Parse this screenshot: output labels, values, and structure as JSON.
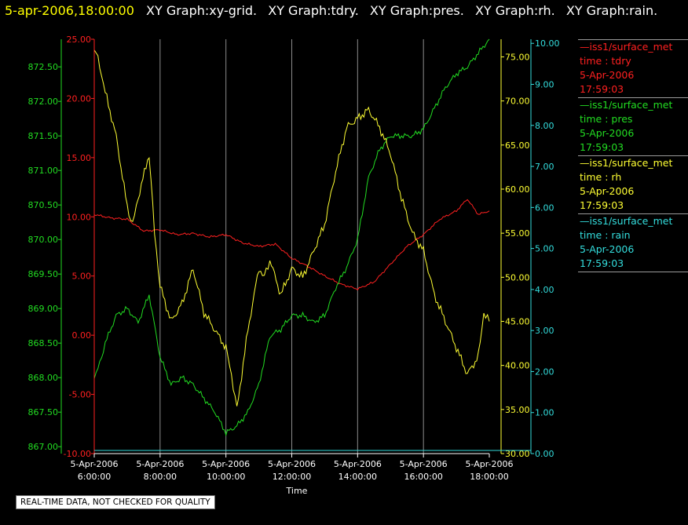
{
  "header": {
    "timestamp": "5-apr-2006,18:00:00",
    "graphs": [
      "XY Graph:xy-grid.",
      "XY Graph:tdry.",
      "XY Graph:pres.",
      "XY Graph:rh.",
      "XY Graph:rain."
    ]
  },
  "disclaimer": "REAL-TIME DATA, NOT CHECKED FOR QUALITY",
  "legend": [
    {
      "source": "—iss1/surface_met",
      "variable": "time : tdry",
      "date": "5-Apr-2006",
      "time": "17:59:03",
      "color": "#ff2020"
    },
    {
      "source": "—iss1/surface_met",
      "variable": "time : pres",
      "date": "5-Apr-2006",
      "time": "17:59:03",
      "color": "#22dd22"
    },
    {
      "source": "—iss1/surface_met",
      "variable": "time : rh",
      "date": "5-Apr-2006",
      "time": "17:59:03",
      "color": "#ffff33"
    },
    {
      "source": "—iss1/surface_met",
      "variable": "time : rain",
      "date": "5-Apr-2006",
      "time": "17:59:03",
      "color": "#33dddd"
    }
  ],
  "chart_data": {
    "type": "line",
    "xlabel": "Time",
    "xlim": [
      "06:00",
      "18:00"
    ],
    "x_ticks": [
      {
        "date": "5-Apr-2006",
        "time": "6:00:00"
      },
      {
        "date": "5-Apr-2006",
        "time": "8:00:00"
      },
      {
        "date": "5-Apr-2006",
        "time": "10:00:00"
      },
      {
        "date": "5-Apr-2006",
        "time": "12:00:00"
      },
      {
        "date": "5-Apr-2006",
        "time": "14:00:00"
      },
      {
        "date": "5-Apr-2006",
        "time": "16:00:00"
      },
      {
        "date": "5-Apr-2006",
        "time": "18:00:00"
      }
    ],
    "grid": "vertical",
    "axes": {
      "tdry": {
        "side": "left-inner",
        "color": "#ff2020",
        "ylim": [
          -10,
          25
        ],
        "ticks": [
          "25.00",
          "20.00",
          "15.00",
          "10.00",
          "5.00",
          "0.00",
          "-5.00",
          "-10.00"
        ]
      },
      "pres": {
        "side": "left-outer",
        "color": "#22dd22",
        "ylim": [
          866.9,
          872.9
        ],
        "ticks": [
          "872.50",
          "872.00",
          "871.50",
          "871.00",
          "870.50",
          "870.00",
          "869.50",
          "869.00",
          "868.50",
          "868.00",
          "867.50",
          "867.00"
        ]
      },
      "rh": {
        "side": "right-inner",
        "color": "#ffff33",
        "ylim": [
          30,
          77
        ],
        "ticks": [
          "75.00",
          "70.00",
          "65.00",
          "60.00",
          "55.00",
          "50.00",
          "45.00",
          "40.00",
          "35.00",
          "30.00"
        ]
      },
      "rain": {
        "side": "right-outer",
        "color": "#33dddd",
        "ylim": [
          0,
          10.1
        ],
        "ticks": [
          "10.00",
          "9.00",
          "8.00",
          "7.00",
          "6.00",
          "5.00",
          "4.00",
          "3.00",
          "2.00",
          "1.00",
          "0.00"
        ]
      }
    },
    "series": [
      {
        "axis": "tdry",
        "color": "#ff2020",
        "x": [
          "06:00",
          "06:30",
          "07:00",
          "07:30",
          "08:00",
          "08:30",
          "09:00",
          "09:30",
          "10:00",
          "10:30",
          "11:00",
          "11:30",
          "12:00",
          "12:30",
          "13:00",
          "13:30",
          "14:00",
          "14:30",
          "15:00",
          "15:30",
          "16:00",
          "16:30",
          "17:00",
          "17:20",
          "17:40",
          "18:00"
        ],
        "values": [
          10.2,
          9.9,
          9.8,
          8.8,
          8.9,
          8.5,
          8.6,
          8.3,
          8.5,
          7.8,
          7.5,
          7.7,
          6.5,
          5.8,
          5.0,
          4.3,
          3.9,
          4.5,
          6.0,
          7.5,
          8.5,
          9.8,
          10.5,
          11.5,
          10.2,
          10.5
        ]
      },
      {
        "axis": "pres",
        "color": "#22dd22",
        "x": [
          "06:00",
          "06:10",
          "06:20",
          "06:40",
          "07:00",
          "07:20",
          "07:40",
          "08:00",
          "08:20",
          "08:40",
          "09:00",
          "09:20",
          "09:40",
          "10:00",
          "10:20",
          "10:40",
          "11:00",
          "11:20",
          "11:40",
          "12:00",
          "12:20",
          "12:40",
          "13:00",
          "13:20",
          "13:40",
          "14:00",
          "14:20",
          "14:40",
          "15:00",
          "15:20",
          "15:40",
          "16:00",
          "16:20",
          "16:40",
          "17:00",
          "17:20",
          "17:40",
          "18:00"
        ],
        "values": [
          868.0,
          868.2,
          868.5,
          868.9,
          869.0,
          868.8,
          869.2,
          868.3,
          867.9,
          868.0,
          867.9,
          867.7,
          867.5,
          867.2,
          867.3,
          867.5,
          867.9,
          868.6,
          868.7,
          868.9,
          868.9,
          868.8,
          868.9,
          869.3,
          869.6,
          870.0,
          870.9,
          871.3,
          871.5,
          871.5,
          871.5,
          871.6,
          871.9,
          872.2,
          872.4,
          872.5,
          872.7,
          872.9
        ]
      },
      {
        "axis": "rh",
        "color": "#ffff33",
        "x": [
          "06:00",
          "06:10",
          "06:20",
          "06:40",
          "07:00",
          "07:10",
          "07:20",
          "07:40",
          "07:50",
          "08:00",
          "08:20",
          "08:40",
          "09:00",
          "09:20",
          "09:40",
          "10:00",
          "10:10",
          "10:20",
          "10:40",
          "11:00",
          "11:10",
          "11:20",
          "11:40",
          "12:00",
          "12:20",
          "12:40",
          "13:00",
          "13:20",
          "13:40",
          "14:00",
          "14:20",
          "14:40",
          "15:00",
          "15:20",
          "15:40",
          "16:00",
          "16:20",
          "16:40",
          "17:00",
          "17:20",
          "17:40",
          "17:50",
          "18:00"
        ],
        "values": [
          76,
          74,
          71,
          66,
          58,
          56,
          59,
          64,
          55,
          49,
          45,
          47,
          51,
          46,
          44,
          42,
          39,
          35,
          44,
          51,
          50,
          52,
          48,
          51,
          50,
          53,
          56,
          62,
          67,
          68,
          69,
          67,
          64,
          59,
          55,
          53,
          48,
          45,
          42,
          39,
          41,
          46,
          45
        ]
      },
      {
        "axis": "rain",
        "color": "#33dddd",
        "x": [
          "06:00",
          "18:00"
        ],
        "values": [
          0,
          0
        ]
      }
    ]
  }
}
